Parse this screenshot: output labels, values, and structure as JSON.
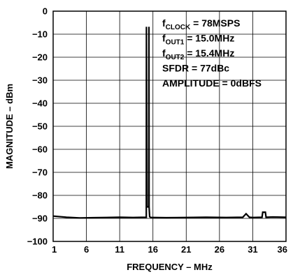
{
  "chart_data": {
    "type": "line",
    "xlabel": "FREQUENCY – MHz",
    "ylabel": "MAGNITUDE – dBm",
    "xlim": [
      1,
      36
    ],
    "ylim": [
      -100,
      0
    ],
    "xticks": [
      1,
      6,
      11,
      16,
      21,
      26,
      31,
      36
    ],
    "yticks": [
      0,
      -10,
      -20,
      -30,
      -40,
      -50,
      -60,
      -70,
      -80,
      -90,
      -100
    ],
    "ytick_labels": [
      "0",
      "−10",
      "−20",
      "−30",
      "−40",
      "−50",
      "−60",
      "−70",
      "−80",
      "−90",
      "−100"
    ],
    "grid": true,
    "annotations": [
      {
        "main": "f",
        "sub": "CLOCK",
        "rest": " = 78MSPS"
      },
      {
        "main": "f",
        "sub": "OUT1",
        "rest": " = 15.0MHz"
      },
      {
        "main": "f",
        "sub": "OUT2",
        "rest": " = 15.4MHz"
      },
      {
        "main": "SFDR = 77dBc",
        "sub": "",
        "rest": ""
      },
      {
        "main": "AMPLITUDE = 0dBFS",
        "sub": "",
        "rest": ""
      }
    ],
    "series": [
      {
        "x": [
          1,
          3,
          5,
          7,
          9,
          11,
          13,
          14.9,
          15.0,
          15.02,
          15.1,
          15.2,
          15.3,
          15.38,
          15.4,
          15.42,
          15.5,
          15.6,
          15.8,
          16,
          18,
          21,
          24,
          27,
          29.5,
          30,
          30.5,
          31,
          32.4,
          32.5,
          32.9,
          33,
          34,
          36
        ],
        "y": [
          -89,
          -89.5,
          -89.8,
          -89.7,
          -89.6,
          -89.5,
          -89.6,
          -89.5,
          -89.5,
          -6.8,
          -85,
          -85,
          -85,
          -85,
          -6.8,
          -85,
          -89.2,
          -89.5,
          -89.6,
          -89.6,
          -89.7,
          -89.6,
          -89.5,
          -89.6,
          -89.5,
          -88,
          -89.5,
          -89.6,
          -89.5,
          -87.3,
          -87.3,
          -89.5,
          -89.4,
          -89.5
        ]
      }
    ]
  }
}
